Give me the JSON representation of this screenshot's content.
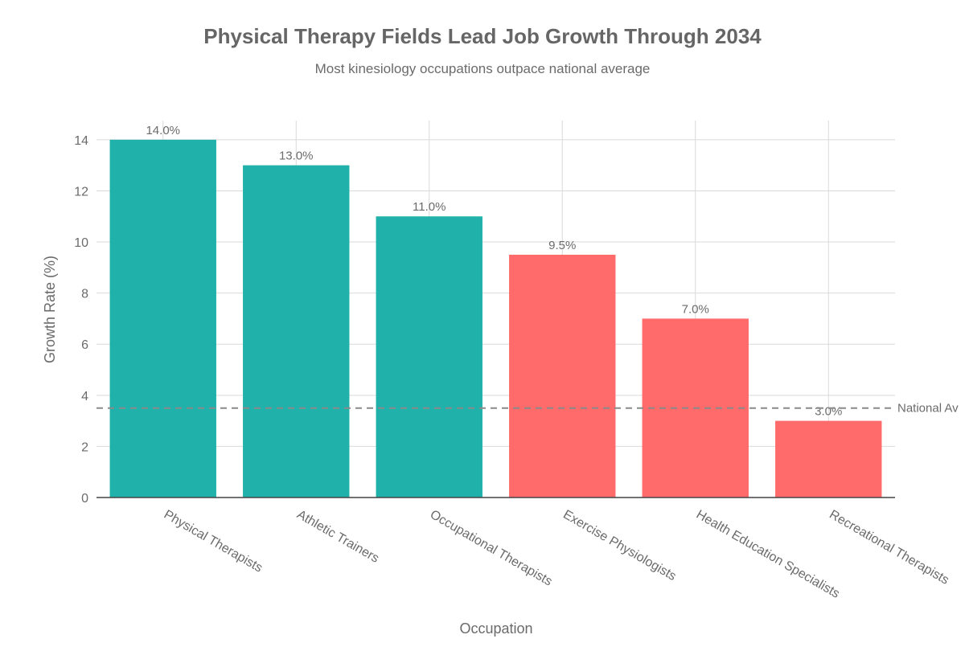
{
  "chart_data": {
    "type": "bar",
    "title": "Physical Therapy Fields Lead Job Growth Through 2034",
    "subtitle": "Most kinesiology occupations outpace national average",
    "xlabel": "Occupation",
    "ylabel": "Growth Rate (%)",
    "categories": [
      "Physical Therapists",
      "Athletic Trainers",
      "Occupational Therapists",
      "Exercise Physiologists",
      "Health Education Specialists",
      "Recreational Therapists"
    ],
    "values": [
      14.0,
      13.0,
      11.0,
      9.5,
      7.0,
      3.0
    ],
    "data_labels": [
      "14.0%",
      "13.0%",
      "11.0%",
      "9.5%",
      "7.0%",
      "3.0%"
    ],
    "bar_groups": [
      "high",
      "high",
      "high",
      "low",
      "low",
      "low"
    ],
    "ylim": [
      0,
      14.75
    ],
    "yticks": [
      0,
      2,
      4,
      6,
      8,
      10,
      12,
      14
    ],
    "grid": true,
    "reference_line": {
      "label": "National Av",
      "value": 3.5
    },
    "colors": {
      "high": "#20B2AA",
      "low": "#FF6B6B",
      "reference": "#8a8a8a",
      "grid": "#d9d9d9",
      "title": "#666666",
      "text": "#6b6b6b"
    }
  }
}
